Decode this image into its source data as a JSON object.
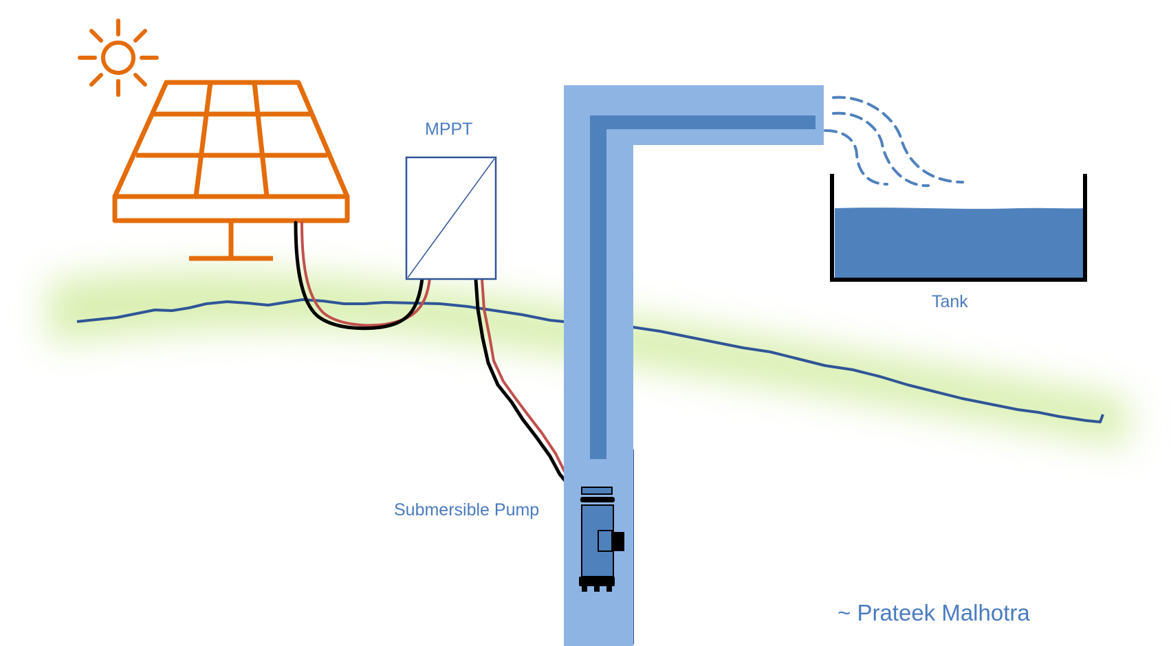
{
  "labels": {
    "mppt": "MPPT",
    "tank": "Tank",
    "pump": "Submersible Pump",
    "credit": "~ Prateek Malhotra"
  },
  "colors": {
    "sun_and_panel": "#e46c0a",
    "ground_glow": "#d9efb0",
    "ground_line": "#2f5597",
    "pipe_light": "#8eb4e3",
    "pipe_dark": "#4f81bd",
    "water": "#4f81bd",
    "wire_positive": "#c0504d",
    "wire_negative": "#000000",
    "label_text": "#4a7bbf"
  },
  "icons": [
    "sun-icon",
    "solar-panel-icon",
    "mppt-controller-icon",
    "submersible-pump-icon",
    "water-tank-icon"
  ]
}
